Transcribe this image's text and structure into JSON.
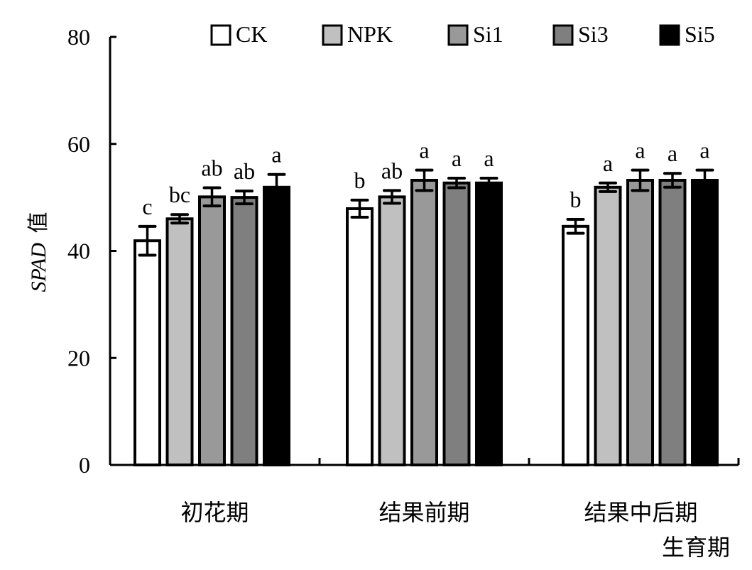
{
  "chart_data": {
    "type": "bar",
    "title": "",
    "xlabel": "生育期",
    "ylabel_italic": "SPAD",
    "ylabel_suffix": "值",
    "ylim": [
      0,
      80
    ],
    "yticks": [
      0,
      20,
      40,
      60,
      80
    ],
    "categories": [
      "初花期",
      "结果前期",
      "结果中后期"
    ],
    "legend_position": "top-right",
    "series": [
      {
        "name": "CK",
        "color": "#ffffff",
        "values": [
          41.9,
          47.9,
          44.6
        ],
        "errors": [
          2.7,
          1.6,
          1.3
        ],
        "letters": [
          "c",
          "b",
          "b"
        ]
      },
      {
        "name": "NPK",
        "color": "#c0c0c0",
        "values": [
          46.0,
          50.1,
          51.9
        ],
        "errors": [
          0.8,
          1.2,
          0.8
        ],
        "letters": [
          "bc",
          "ab",
          "a"
        ]
      },
      {
        "name": "Si1",
        "color": "#999999",
        "values": [
          50.1,
          53.2,
          53.2
        ],
        "errors": [
          1.7,
          1.9,
          1.9
        ],
        "letters": [
          "ab",
          "a",
          "a"
        ]
      },
      {
        "name": "Si3",
        "color": "#7f7f7f",
        "values": [
          50.0,
          52.7,
          53.2
        ],
        "errors": [
          1.2,
          0.9,
          1.3
        ],
        "letters": [
          "ab",
          "a",
          "a"
        ]
      },
      {
        "name": "Si5",
        "color": "#000000",
        "values": [
          51.9,
          52.7,
          53.2
        ],
        "errors": [
          2.4,
          0.9,
          1.9
        ],
        "letters": [
          "a",
          "a",
          "a"
        ]
      }
    ]
  }
}
